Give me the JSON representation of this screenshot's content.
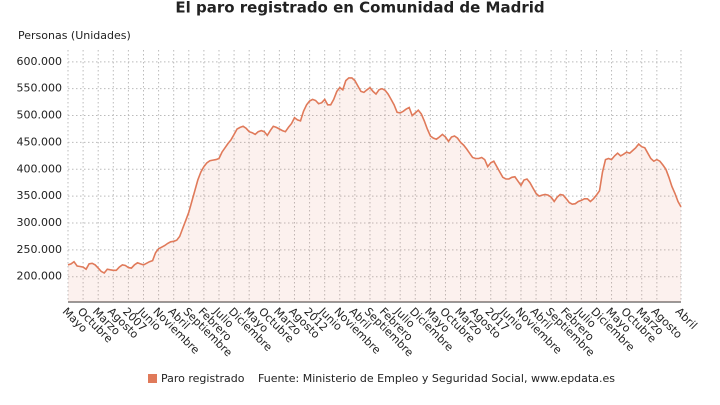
{
  "chart_data": {
    "type": "line",
    "title": "El paro registrado en Comunidad de Madrid",
    "y_label": "Personas (Unidades)",
    "source": "Fuente: Ministerio de Empleo y Seguridad Social, www.epdata.es",
    "categories": [
      "Mayo",
      null,
      null,
      null,
      null,
      "Octubre",
      null,
      null,
      null,
      null,
      "Marzo",
      null,
      null,
      null,
      null,
      "Agosto",
      null,
      null,
      null,
      null,
      "2007",
      null,
      null,
      null,
      null,
      "Junio",
      null,
      null,
      null,
      null,
      "Noviembre",
      null,
      null,
      null,
      null,
      "Abril",
      null,
      null,
      null,
      null,
      "Septiembre",
      null,
      null,
      null,
      null,
      "Febrero",
      null,
      null,
      null,
      null,
      "Julio",
      null,
      null,
      null,
      null,
      "Diciembre",
      null,
      null,
      null,
      null,
      "Mayo",
      null,
      null,
      null,
      null,
      "Octubre",
      null,
      null,
      null,
      null,
      "Marzo",
      null,
      null,
      null,
      null,
      "Agosto",
      null,
      null,
      null,
      null,
      "2012",
      null,
      null,
      null,
      null,
      "Junio",
      null,
      null,
      null,
      null,
      "Noviembre",
      null,
      null,
      null,
      null,
      "Abril",
      null,
      null,
      null,
      null,
      "Septiembre",
      null,
      null,
      null,
      null,
      "Febrero",
      null,
      null,
      null,
      null,
      "Julio",
      null,
      null,
      null,
      null,
      "Diciembre",
      null,
      null,
      null,
      null,
      "Mayo",
      null,
      null,
      null,
      null,
      "Octubre",
      null,
      null,
      null,
      null,
      "Marzo",
      null,
      null,
      null,
      null,
      "Agosto",
      null,
      null,
      null,
      null,
      "2017",
      null,
      null,
      null,
      null,
      "Junio",
      null,
      null,
      null,
      null,
      "Noviembre",
      null,
      null,
      null,
      null,
      "Abril",
      null,
      null,
      null,
      null,
      "Septiembre",
      null,
      null,
      null,
      null,
      "Febrero",
      null,
      null,
      null,
      null,
      "Julio",
      null,
      null,
      null,
      null,
      "Diciembre",
      null,
      null,
      null,
      null,
      "Mayo",
      null,
      null,
      null,
      null,
      "Octubre",
      null,
      null,
      null,
      null,
      "Marzo",
      null,
      null,
      null,
      null,
      "Agosto",
      null,
      null,
      null,
      null,
      null,
      null,
      null,
      "Abril"
    ],
    "series": [
      {
        "name": "Paro registrado",
        "color": "#e07a5a",
        "values": [
          222000,
          224000,
          228000,
          220000,
          219000,
          218000,
          214000,
          224000,
          225000,
          222000,
          216000,
          210000,
          207000,
          214000,
          213000,
          212000,
          212000,
          218000,
          222000,
          221000,
          217000,
          216000,
          222000,
          226000,
          224000,
          222000,
          225000,
          228000,
          230000,
          245000,
          252000,
          255000,
          258000,
          262000,
          265000,
          266000,
          268000,
          275000,
          290000,
          305000,
          320000,
          340000,
          360000,
          380000,
          395000,
          405000,
          412000,
          416000,
          417000,
          418000,
          420000,
          432000,
          440000,
          448000,
          455000,
          465000,
          475000,
          478000,
          480000,
          476000,
          470000,
          468000,
          465000,
          470000,
          472000,
          470000,
          463000,
          472000,
          480000,
          478000,
          475000,
          472000,
          470000,
          478000,
          485000,
          496000,
          492000,
          490000,
          508000,
          520000,
          527000,
          530000,
          528000,
          522000,
          524000,
          530000,
          520000,
          520000,
          530000,
          545000,
          552000,
          548000,
          565000,
          570000,
          570000,
          565000,
          555000,
          545000,
          543000,
          548000,
          552000,
          545000,
          540000,
          548000,
          550000,
          547000,
          540000,
          530000,
          520000,
          506000,
          505000,
          508000,
          512000,
          515000,
          500000,
          505000,
          510000,
          503000,
          490000,
          475000,
          462000,
          458000,
          456000,
          460000,
          465000,
          460000,
          452000,
          460000,
          462000,
          458000,
          450000,
          445000,
          438000,
          430000,
          422000,
          420000,
          420000,
          422000,
          418000,
          405000,
          412000,
          415000,
          405000,
          395000,
          385000,
          382000,
          382000,
          385000,
          386000,
          378000,
          370000,
          380000,
          382000,
          375000,
          365000,
          355000,
          350000,
          352000,
          353000,
          352000,
          348000,
          340000,
          348000,
          353000,
          352000,
          345000,
          338000,
          335000,
          336000,
          340000,
          342000,
          345000,
          345000,
          340000,
          345000,
          352000,
          360000,
          395000,
          418000,
          420000,
          418000,
          425000,
          430000,
          425000,
          428000,
          432000,
          430000,
          435000,
          440000,
          447000,
          442000,
          440000,
          430000,
          420000,
          415000,
          418000,
          415000,
          408000,
          400000,
          385000,
          368000,
          355000,
          340000,
          330000
        ]
      }
    ],
    "ylim": [
      153000,
      622000
    ],
    "yticks": [
      {
        "value": 200000,
        "label": "200.000"
      },
      {
        "value": 250000,
        "label": "250.000"
      },
      {
        "value": 300000,
        "label": "300.000"
      },
      {
        "value": 350000,
        "label": "350.000"
      },
      {
        "value": 400000,
        "label": "400.000"
      },
      {
        "value": 450000,
        "label": "450.000"
      },
      {
        "value": 500000,
        "label": "500.000"
      },
      {
        "value": 550000,
        "label": "550.000"
      },
      {
        "value": 600000,
        "label": "600.000"
      }
    ],
    "grid": true
  }
}
